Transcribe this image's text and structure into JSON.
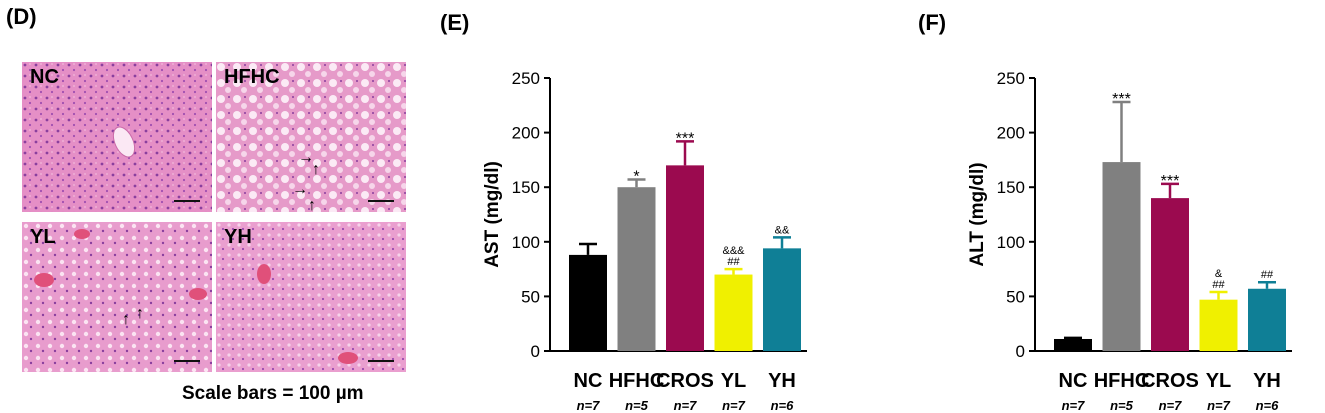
{
  "panel_labels": {
    "D": "(D)",
    "E": "(E)",
    "F": "(F)"
  },
  "micrographs": [
    {
      "label": "NC"
    },
    {
      "label": "HFHC"
    },
    {
      "label": "YL"
    },
    {
      "label": "YH"
    }
  ],
  "scale_caption": "Scale bars = 100 µm",
  "colors": {
    "NC": "#000000",
    "HFHC": "#808080",
    "CROS": "#9b0a4f",
    "YL": "#f0f000",
    "YH": "#0f7f96"
  },
  "chart_data": [
    {
      "type": "bar",
      "title": "(E)",
      "ylabel": "AST (mg/dl)",
      "xlabel": "",
      "ylim": [
        0,
        250
      ],
      "yticks": [
        0,
        50,
        100,
        150,
        200,
        250
      ],
      "categories": [
        "NC",
        "HFHC",
        "CROS",
        "YL",
        "YH"
      ],
      "n_labels": [
        "n=7",
        "n=5",
        "n=7",
        "n=7",
        "n=6"
      ],
      "values": [
        88,
        150,
        170,
        70,
        94
      ],
      "errors": [
        10,
        7,
        22,
        5,
        10
      ],
      "annotations": [
        [],
        [
          "*"
        ],
        [
          "***"
        ],
        [
          "&&&",
          "##"
        ],
        [
          "&&"
        ]
      ]
    },
    {
      "type": "bar",
      "title": "(F)",
      "ylabel": "ALT (mg/dl)",
      "xlabel": "",
      "ylim": [
        0,
        250
      ],
      "yticks": [
        0,
        50,
        100,
        150,
        200,
        250
      ],
      "categories": [
        "NC",
        "HFHC",
        "CROS",
        "YL",
        "YH"
      ],
      "n_labels": [
        "n=7",
        "n=5",
        "n=7",
        "n=7",
        "n=6"
      ],
      "values": [
        11,
        173,
        140,
        47,
        57
      ],
      "errors": [
        1,
        55,
        13,
        7,
        6
      ],
      "annotations": [
        [],
        [
          "***"
        ],
        [
          "***"
        ],
        [
          "&",
          "##"
        ],
        [
          "##"
        ]
      ]
    }
  ]
}
